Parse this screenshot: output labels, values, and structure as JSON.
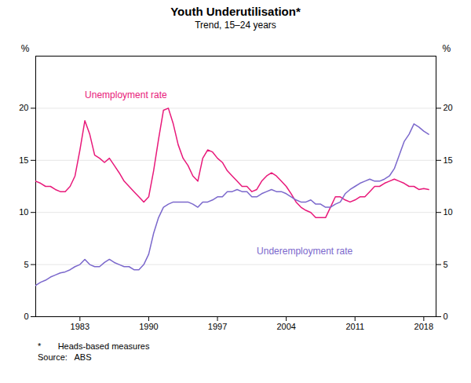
{
  "chart_data": {
    "type": "line",
    "title": "Youth Underutilisation*",
    "subtitle": "Trend, 15–24 years",
    "ylabel": "%",
    "y2label": "%",
    "x": [
      1978.5,
      1979.0,
      1979.5,
      1980.0,
      1980.5,
      1981.0,
      1981.5,
      1982.0,
      1982.5,
      1983.0,
      1983.5,
      1984.0,
      1984.5,
      1985.0,
      1985.5,
      1986.0,
      1986.5,
      1987.0,
      1987.5,
      1988.0,
      1988.5,
      1989.0,
      1989.5,
      1990.0,
      1990.5,
      1991.0,
      1991.5,
      1992.0,
      1992.5,
      1993.0,
      1993.5,
      1994.0,
      1994.5,
      1995.0,
      1995.5,
      1996.0,
      1996.5,
      1997.0,
      1997.5,
      1998.0,
      1998.5,
      1999.0,
      1999.5,
      2000.0,
      2000.5,
      2001.0,
      2001.5,
      2002.0,
      2002.5,
      2003.0,
      2003.5,
      2004.0,
      2004.5,
      2005.0,
      2005.5,
      2006.0,
      2006.5,
      2007.0,
      2007.5,
      2008.0,
      2008.5,
      2009.0,
      2009.5,
      2010.0,
      2010.5,
      2011.0,
      2011.5,
      2012.0,
      2012.5,
      2013.0,
      2013.5,
      2014.0,
      2014.5,
      2015.0,
      2015.5,
      2016.0,
      2016.5,
      2017.0,
      2017.5,
      2018.0,
      2018.5
    ],
    "xlim": [
      1978.5,
      2019.25
    ],
    "xticks": [
      1983,
      1990,
      1997,
      2004,
      2011,
      2018
    ],
    "ylim": [
      0,
      25
    ],
    "yticks": [
      0,
      5,
      10,
      15,
      20
    ],
    "y2lim": [
      0,
      25
    ],
    "y2ticks": [
      0,
      5,
      10,
      15,
      20
    ],
    "grid": true,
    "series": [
      {
        "name": "Unemployment rate",
        "color": "#e8197a",
        "values": [
          13.0,
          12.8,
          12.5,
          12.5,
          12.2,
          12.0,
          12.0,
          12.5,
          13.5,
          16.0,
          18.8,
          17.5,
          15.5,
          15.2,
          14.8,
          15.2,
          14.5,
          13.8,
          13.0,
          12.5,
          12.0,
          11.5,
          11.0,
          11.5,
          14.0,
          17.0,
          19.8,
          20.0,
          18.5,
          16.5,
          15.2,
          14.5,
          13.5,
          13.0,
          15.2,
          16.0,
          15.8,
          15.2,
          14.8,
          14.0,
          13.5,
          13.0,
          12.5,
          12.5,
          12.0,
          12.2,
          13.0,
          13.5,
          13.8,
          13.5,
          13.0,
          12.5,
          11.8,
          11.0,
          10.5,
          10.2,
          10.0,
          9.5,
          9.5,
          9.5,
          10.5,
          11.5,
          11.5,
          11.2,
          11.0,
          11.2,
          11.5,
          11.5,
          12.0,
          12.5,
          12.5,
          12.8,
          13.0,
          13.2,
          13.0,
          12.8,
          12.5,
          12.5,
          12.2,
          12.3,
          12.2
        ]
      },
      {
        "name": "Underemployment rate",
        "color": "#7b68cc",
        "values": [
          3.0,
          3.3,
          3.5,
          3.8,
          4.0,
          4.2,
          4.3,
          4.5,
          4.8,
          5.0,
          5.5,
          5.0,
          4.8,
          4.8,
          5.2,
          5.5,
          5.2,
          5.0,
          4.8,
          4.8,
          4.5,
          4.5,
          5.0,
          6.0,
          8.0,
          9.5,
          10.5,
          10.8,
          11.0,
          11.0,
          11.0,
          11.0,
          10.8,
          10.5,
          11.0,
          11.0,
          11.2,
          11.5,
          11.5,
          12.0,
          12.0,
          12.2,
          12.0,
          12.0,
          11.5,
          11.5,
          11.8,
          12.0,
          12.2,
          12.0,
          12.0,
          11.8,
          11.5,
          11.2,
          11.0,
          11.0,
          11.2,
          10.8,
          10.8,
          10.5,
          10.5,
          10.8,
          11.0,
          11.8,
          12.2,
          12.5,
          12.8,
          13.0,
          13.2,
          13.0,
          13.0,
          13.2,
          13.5,
          14.2,
          15.5,
          16.8,
          17.5,
          18.5,
          18.2,
          17.8,
          17.5
        ]
      }
    ],
    "annotations": [
      {
        "text": "Unemployment rate",
        "x": 1983.5,
        "y": 21.0,
        "color": "#e8197a"
      },
      {
        "text": "Underemployment rate",
        "x": 2001.0,
        "y": 6.0,
        "color": "#7b68cc"
      }
    ],
    "notes": [
      "*       Heads-based measures",
      "Source:   ABS"
    ]
  }
}
